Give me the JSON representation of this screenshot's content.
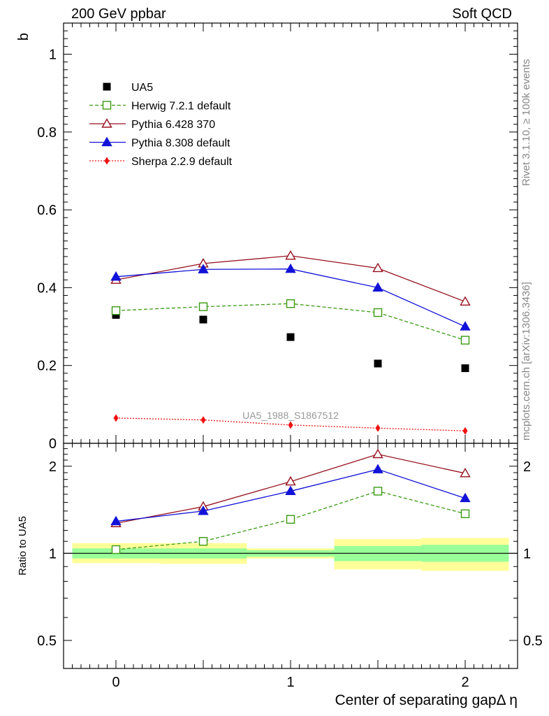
{
  "header": {
    "left_title": "200 GeV ppbar",
    "right_title": "Soft QCD"
  },
  "side_labels": {
    "rivet": "Rivet 3.1.10, ≥ 100k events",
    "mcplots": "mcplots.cern.ch [arXiv:1306.3436]"
  },
  "chart_data": [
    {
      "type": "scatter",
      "panel": "main",
      "ylabel": "b",
      "xlim": [
        -0.3,
        2.3
      ],
      "ylim": [
        0,
        1.08
      ],
      "yticks": [
        0,
        0.2,
        0.4,
        0.6,
        0.8,
        1
      ],
      "ytick_labels": [
        "0",
        "0.2",
        "0.4",
        "0.6",
        "0.8",
        "1"
      ],
      "annotation": "UA5_1988_S1867512",
      "legend_position": "top-left",
      "x": [
        0,
        0.5,
        1,
        1.5,
        2
      ],
      "series": [
        {
          "name": "UA5",
          "color": "#000000",
          "marker": "square-filled",
          "line": "none",
          "values": [
            0.33,
            0.318,
            0.273,
            0.205,
            0.193
          ]
        },
        {
          "name": "Herwig 7.2.1 default",
          "color": "#3a9a12",
          "marker": "square-open",
          "line": "dashed",
          "values": [
            0.341,
            0.351,
            0.359,
            0.336,
            0.265
          ]
        },
        {
          "name": "Pythia 6.428 370",
          "color": "#96111e",
          "marker": "triangle-open",
          "line": "solid",
          "values": [
            0.42,
            0.462,
            0.482,
            0.45,
            0.364
          ]
        },
        {
          "name": "Pythia 8.308 default",
          "color": "#1212d8",
          "marker": "triangle-filled",
          "line": "solid",
          "values": [
            0.428,
            0.447,
            0.448,
            0.4,
            0.3
          ]
        },
        {
          "name": "Sherpa 2.2.9 default",
          "color": "#ee1111",
          "marker": "diamond-filled",
          "line": "dotted",
          "values": [
            0.065,
            0.06,
            0.047,
            0.039,
            0.032
          ]
        }
      ]
    },
    {
      "type": "scatter",
      "panel": "ratio",
      "ylabel": "Ratio to UA5",
      "xlabel": "Center of separating gapΔ η",
      "xlim": [
        -0.3,
        2.3
      ],
      "ylim": [
        0.4,
        2.4
      ],
      "y_scale": "log",
      "yticks": [
        0.5,
        1,
        2
      ],
      "ytick_labels": [
        "0.5",
        "1",
        "2"
      ],
      "xticks": [
        0,
        1,
        2
      ],
      "xtick_labels": [
        "0",
        "1",
        "2"
      ],
      "x": [
        0,
        0.5,
        1,
        1.5,
        2
      ],
      "uncertainty_bands": [
        {
          "x0": -0.25,
          "x1": 0.25,
          "inner": [
            0.96,
            1.04
          ],
          "outer": [
            0.925,
            1.085
          ]
        },
        {
          "x0": 0.25,
          "x1": 0.75,
          "inner": [
            0.96,
            1.04
          ],
          "outer": [
            0.92,
            1.085
          ]
        },
        {
          "x0": 0.75,
          "x1": 1.25,
          "inner": [
            0.975,
            1.025
          ],
          "outer": [
            0.96,
            1.04
          ]
        },
        {
          "x0": 1.25,
          "x1": 1.75,
          "inner": [
            0.94,
            1.06
          ],
          "outer": [
            0.88,
            1.12
          ]
        },
        {
          "x0": 1.75,
          "x1": 2.25,
          "inner": [
            0.935,
            1.07
          ],
          "outer": [
            0.87,
            1.13
          ]
        }
      ],
      "series": [
        {
          "name": "Herwig 7.2.1 default",
          "color": "#3a9a12",
          "marker": "square-open",
          "line": "dashed",
          "values": [
            1.03,
            1.1,
            1.31,
            1.64,
            1.37
          ]
        },
        {
          "name": "Pythia 6.428 370",
          "color": "#96111e",
          "marker": "triangle-open",
          "line": "solid",
          "values": [
            1.27,
            1.45,
            1.77,
            2.2,
            1.89
          ]
        },
        {
          "name": "Pythia 8.308 default",
          "color": "#1212d8",
          "marker": "triangle-filled",
          "line": "solid",
          "values": [
            1.29,
            1.4,
            1.64,
            1.95,
            1.55
          ]
        }
      ]
    }
  ]
}
